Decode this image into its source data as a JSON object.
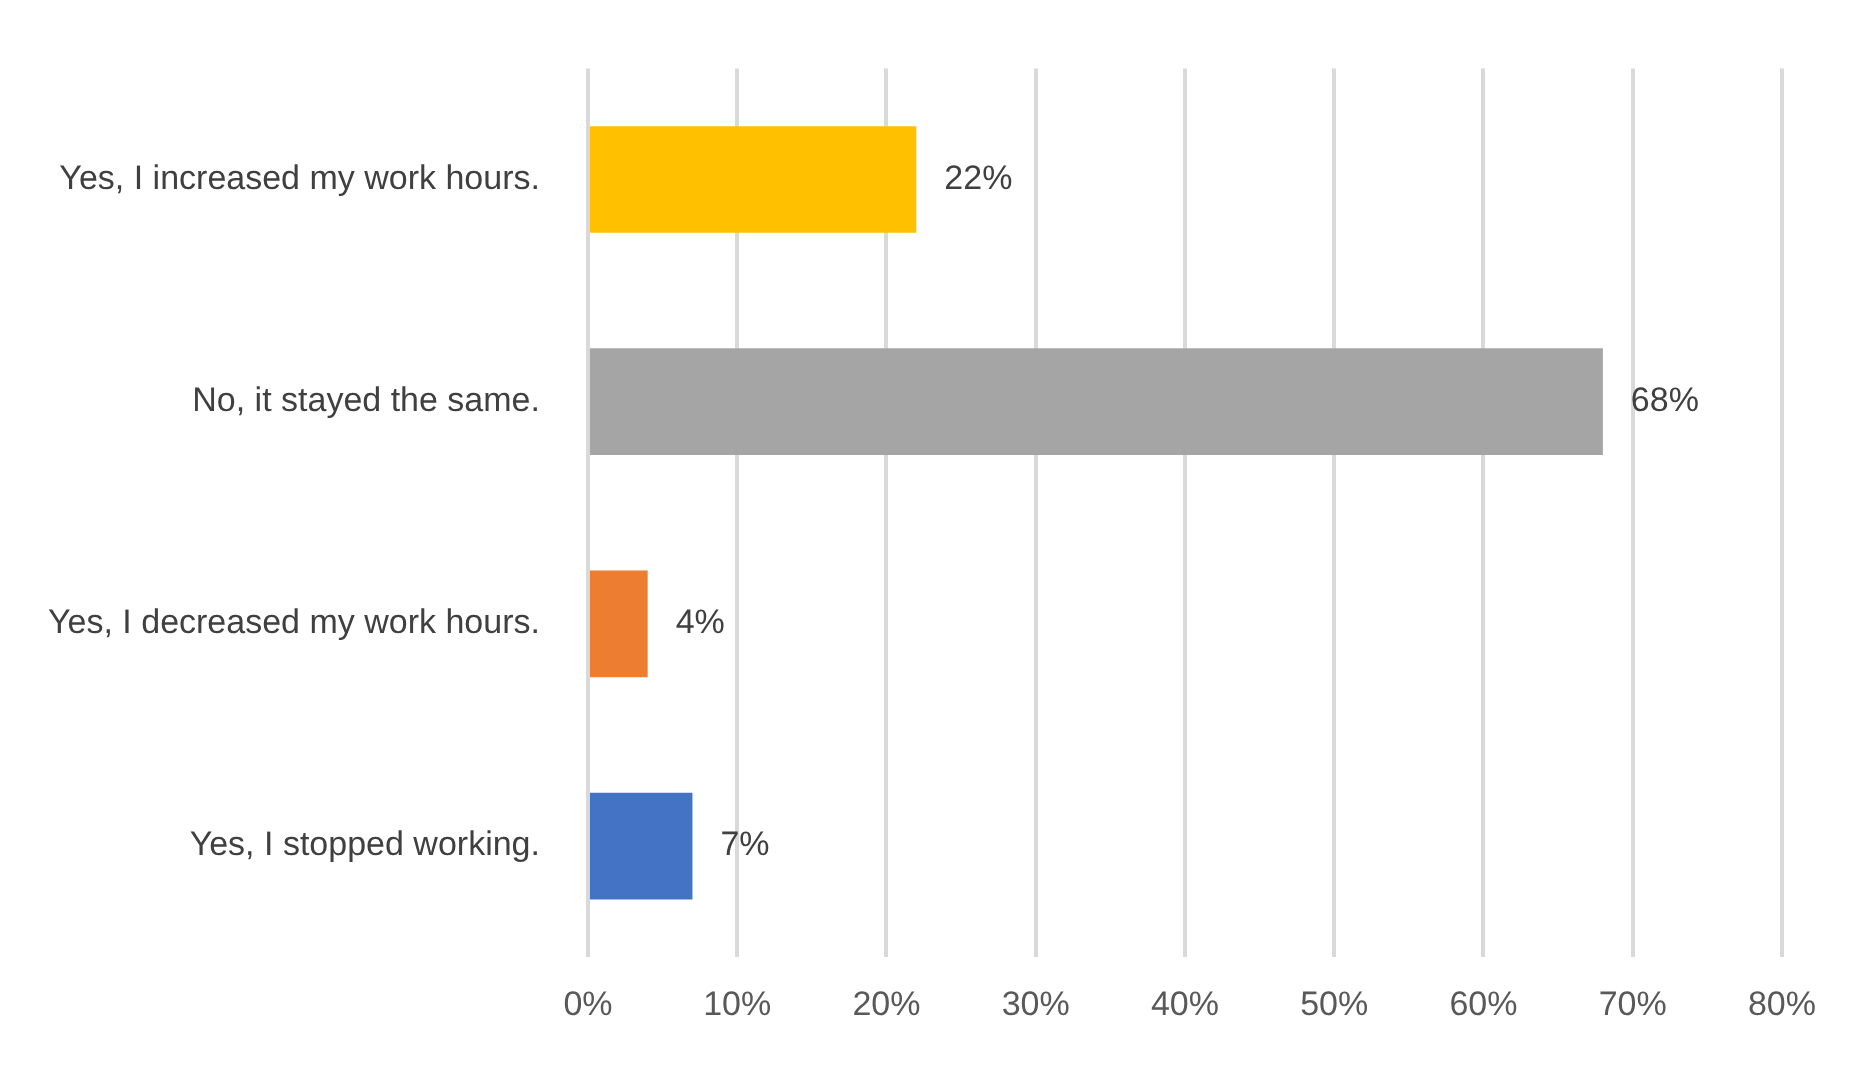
{
  "chart_data": {
    "type": "bar",
    "orientation": "horizontal",
    "categories": [
      "Yes, I increased my work hours.",
      "No, it stayed the same.",
      "Yes, I decreased my work hours.",
      "Yes, I stopped working."
    ],
    "values": [
      22,
      68,
      4,
      7
    ],
    "colors": [
      "#ffc000",
      "#a5a5a5",
      "#ed7d31",
      "#4472c4"
    ],
    "value_labels": [
      "22%",
      "68%",
      "4%",
      "7%"
    ],
    "xlim": [
      0,
      80
    ],
    "xticks": [
      {
        "value": 0,
        "label": "0%"
      },
      {
        "value": 10,
        "label": "10%"
      },
      {
        "value": 20,
        "label": "20%"
      },
      {
        "value": 30,
        "label": "30%"
      },
      {
        "value": 40,
        "label": "40%"
      },
      {
        "value": 50,
        "label": "50%"
      },
      {
        "value": 60,
        "label": "60%"
      },
      {
        "value": 70,
        "label": "70%"
      },
      {
        "value": 80,
        "label": "80%"
      }
    ],
    "grid": "x",
    "legend": false
  }
}
